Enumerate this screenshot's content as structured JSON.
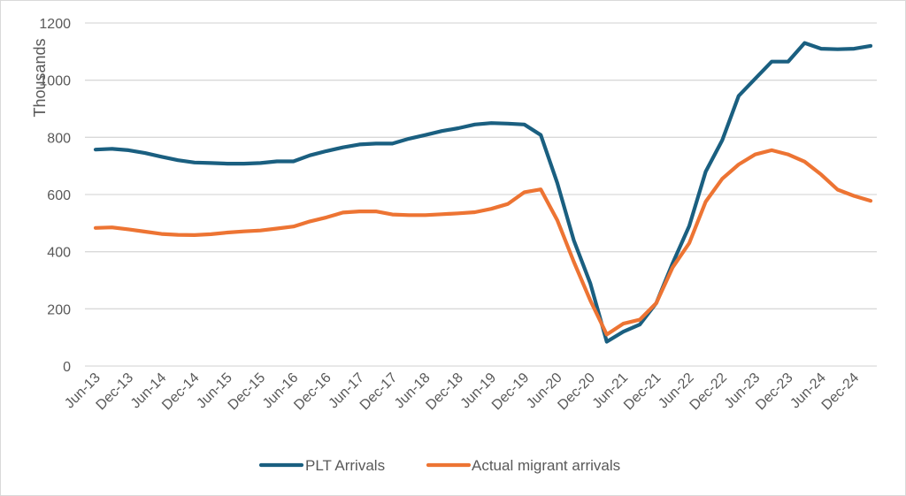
{
  "chart_data": {
    "type": "line",
    "title": "",
    "xlabel": "",
    "ylabel": "Thousands",
    "ylim": [
      0,
      1200
    ],
    "yticks": [
      0,
      200,
      400,
      600,
      800,
      1000,
      1200
    ],
    "grid": true,
    "legend_position": "bottom",
    "x": [
      "Jun-13",
      "Sep-13",
      "Dec-13",
      "Mar-14",
      "Jun-14",
      "Sep-14",
      "Dec-14",
      "Mar-15",
      "Jun-15",
      "Sep-15",
      "Dec-15",
      "Mar-16",
      "Jun-16",
      "Sep-16",
      "Dec-16",
      "Mar-17",
      "Jun-17",
      "Sep-17",
      "Dec-17",
      "Mar-18",
      "Jun-18",
      "Sep-18",
      "Dec-18",
      "Mar-19",
      "Jun-19",
      "Sep-19",
      "Dec-19",
      "Mar-20",
      "Jun-20",
      "Sep-20",
      "Dec-20",
      "Mar-21",
      "Jun-21",
      "Sep-21",
      "Dec-21",
      "Mar-22",
      "Jun-22",
      "Sep-22",
      "Dec-22",
      "Mar-23",
      "Jun-23",
      "Sep-23",
      "Dec-23",
      "Mar-24",
      "Jun-24",
      "Sep-24",
      "Dec-24",
      "Mar-25"
    ],
    "xtick_labels": [
      "Jun-13",
      "Dec-13",
      "Jun-14",
      "Dec-14",
      "Jun-15",
      "Dec-15",
      "Jun-16",
      "Dec-16",
      "Jun-17",
      "Dec-17",
      "Jun-18",
      "Dec-18",
      "Jun-19",
      "Dec-19",
      "Jun-20",
      "Dec-20",
      "Jun-21",
      "Dec-21",
      "Jun-22",
      "Dec-22",
      "Jun-23",
      "Dec-23",
      "Jun-24",
      "Dec-24"
    ],
    "series": [
      {
        "name": "PLT Arrivals",
        "color": "#1a5f80",
        "values": [
          757,
          760,
          755,
          745,
          732,
          720,
          712,
          710,
          708,
          708,
          710,
          716,
          716,
          737,
          752,
          765,
          775,
          778,
          778,
          795,
          808,
          822,
          832,
          845,
          850,
          848,
          845,
          808,
          640,
          440,
          290,
          85,
          120,
          145,
          220,
          360,
          490,
          680,
          790,
          945,
          1005,
          1065,
          1065,
          1130,
          1110,
          1108,
          1110,
          1120
        ]
      },
      {
        "name": "Actual migrant arrivals",
        "color": "#ed7433",
        "values": [
          483,
          485,
          478,
          470,
          462,
          459,
          458,
          461,
          467,
          471,
          474,
          481,
          488,
          506,
          520,
          537,
          541,
          541,
          530,
          528,
          528,
          531,
          534,
          538,
          550,
          567,
          608,
          618,
          510,
          365,
          230,
          110,
          148,
          162,
          220,
          345,
          430,
          575,
          655,
          705,
          740,
          755,
          740,
          715,
          670,
          617,
          595,
          578
        ]
      }
    ]
  }
}
